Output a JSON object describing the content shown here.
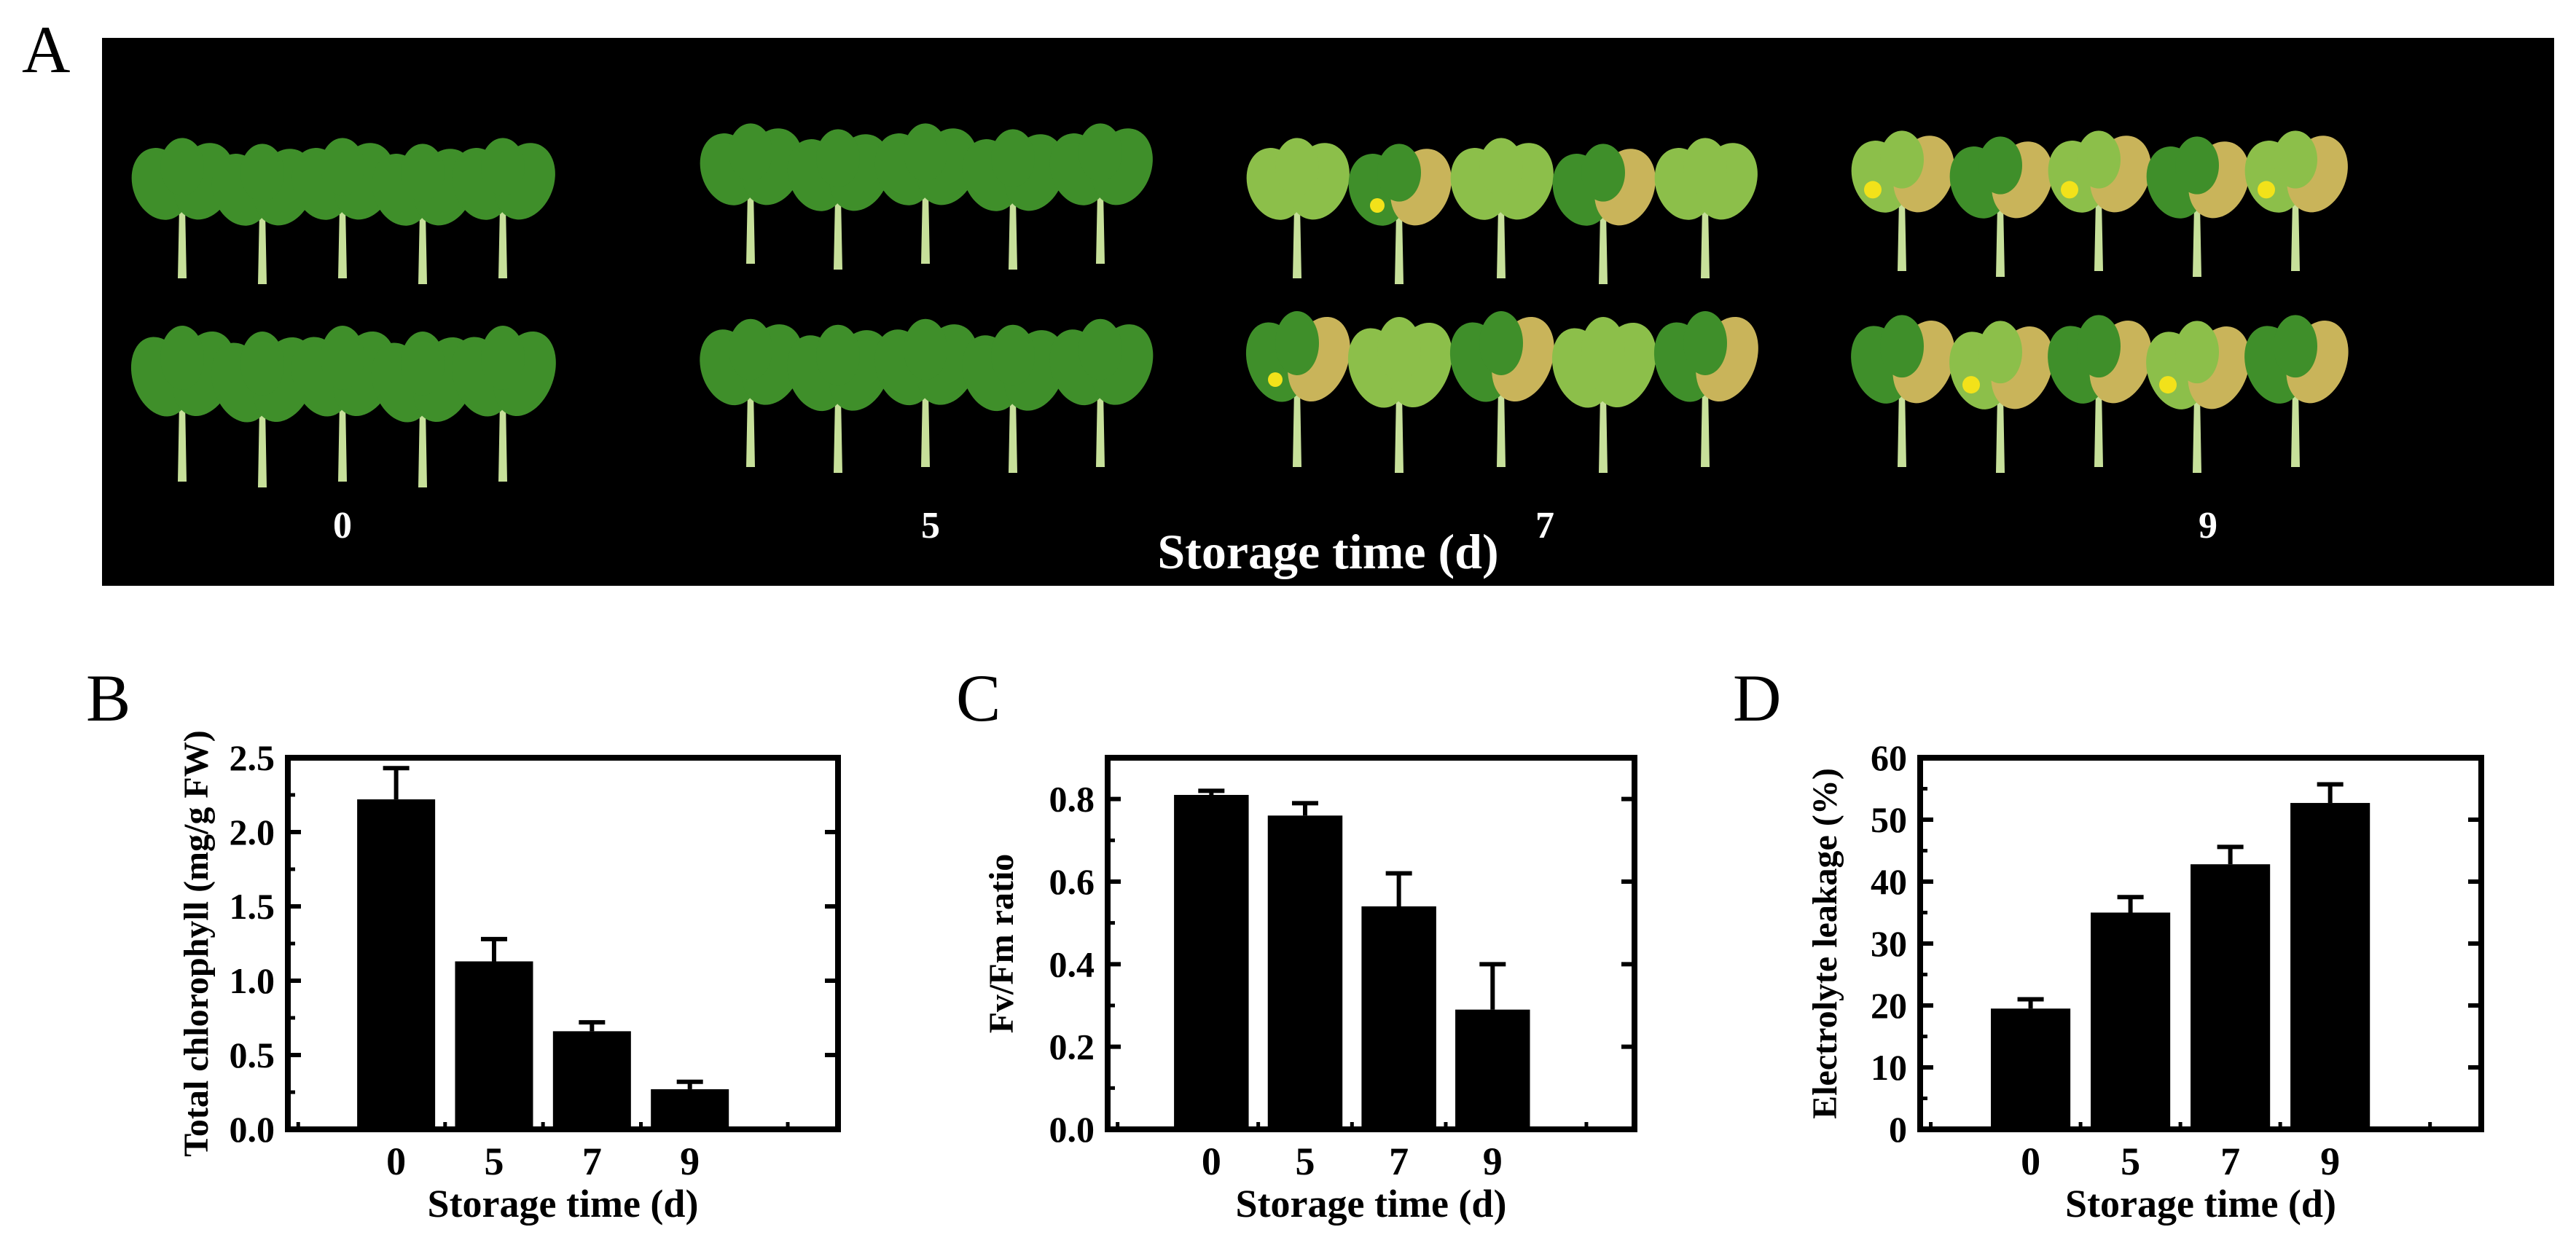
{
  "panels": {
    "a_letter": "A",
    "b_letter": "B",
    "c_letter": "C",
    "d_letter": "D"
  },
  "photo": {
    "groups": [
      "0",
      "5",
      "7",
      "9"
    ],
    "axis_title": "Storage time (d)",
    "background": "#000000",
    "leaf_colors": {
      "fresh": "#3f8f2a",
      "pale": "#8cbf4a",
      "yellowing": "#c9b45a",
      "flower": "#f2e21a",
      "stem": "#c7e09a"
    }
  },
  "chart_data": [
    {
      "type": "bar",
      "panel": "B",
      "categories": [
        "0",
        "5",
        "7",
        "9"
      ],
      "values": [
        2.22,
        1.13,
        0.66,
        0.27
      ],
      "errors": [
        0.21,
        0.15,
        0.06,
        0.05
      ],
      "xlabel": "Storage time (d)",
      "ylabel": "Total chlorophyll (mg/g FW)",
      "ylim": [
        0,
        2.5
      ],
      "yticks": [
        "0.0",
        "0.5",
        "1.0",
        "1.5",
        "2.0",
        "2.5"
      ],
      "bar_color": "#000000"
    },
    {
      "type": "bar",
      "panel": "C",
      "categories": [
        "0",
        "5",
        "7",
        "9"
      ],
      "values": [
        0.81,
        0.76,
        0.54,
        0.29
      ],
      "errors": [
        0.01,
        0.03,
        0.08,
        0.11
      ],
      "xlabel": "Storage time (d)",
      "ylabel": "Fv/Fm ratio",
      "ylim": [
        0,
        0.9
      ],
      "yticks": [
        "0.0",
        "0.2",
        "0.4",
        "0.6",
        "0.8"
      ],
      "bar_color": "#000000"
    },
    {
      "type": "bar",
      "panel": "D",
      "categories": [
        "0",
        "5",
        "7",
        "9"
      ],
      "values": [
        19.5,
        35.0,
        42.8,
        52.7
      ],
      "errors": [
        1.5,
        2.5,
        2.8,
        3.0
      ],
      "xlabel": "Storage time (d)",
      "ylabel": "Electrolyte leakage (%)",
      "ylim": [
        0,
        60
      ],
      "yticks": [
        "0",
        "10",
        "20",
        "30",
        "40",
        "50",
        "60"
      ],
      "bar_color": "#000000"
    }
  ]
}
